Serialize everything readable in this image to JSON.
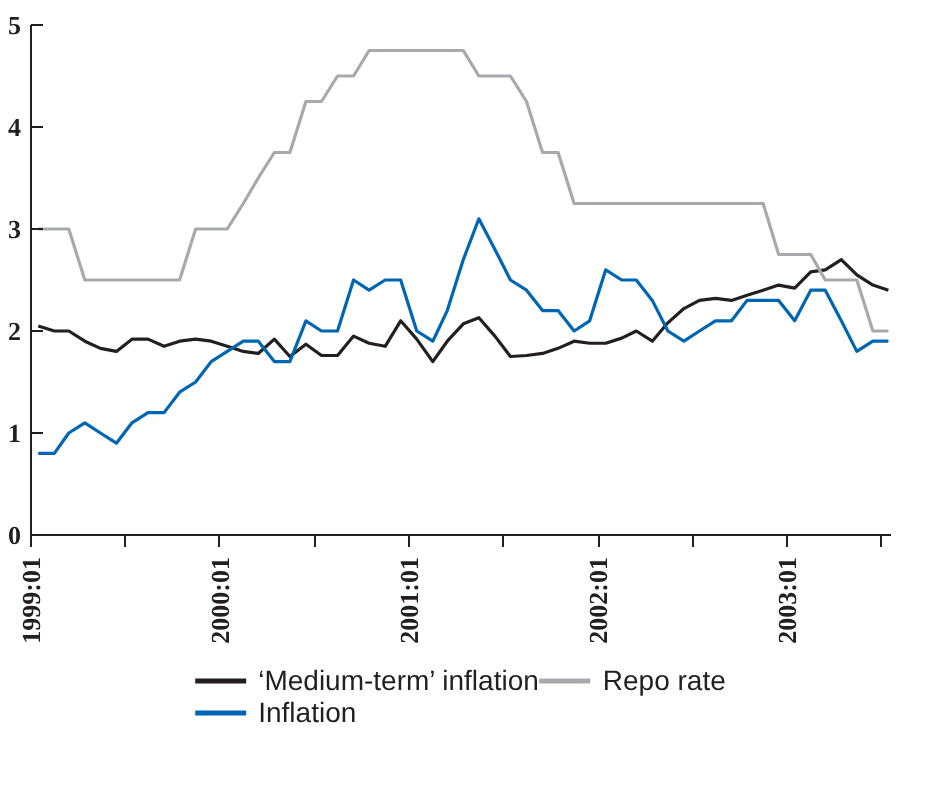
{
  "chart_data": {
    "type": "line",
    "x": [
      "1999-01-15",
      "1999-02-15",
      "1999-03-15",
      "1999-04-15",
      "1999-05-15",
      "1999-06-15",
      "1999-07-15",
      "1999-08-15",
      "1999-09-15",
      "1999-10-15",
      "1999-11-15",
      "1999-12-15",
      "2000-01-15",
      "2000-02-15",
      "2000-03-15",
      "2000-04-15",
      "2000-05-15",
      "2000-06-15",
      "2000-07-15",
      "2000-08-15",
      "2000-09-15",
      "2000-10-15",
      "2000-11-15",
      "2000-12-15",
      "2001-01-15",
      "2001-02-15",
      "2001-03-15",
      "2001-04-15",
      "2001-05-15",
      "2001-06-15",
      "2001-07-15",
      "2001-08-15",
      "2001-09-15",
      "2001-10-15",
      "2001-11-15",
      "2001-12-15",
      "2002-01-15",
      "2002-02-15",
      "2002-03-15",
      "2002-04-15",
      "2002-05-15",
      "2002-06-15",
      "2002-07-15",
      "2002-08-15",
      "2002-09-15",
      "2002-10-15",
      "2002-11-15",
      "2002-12-15",
      "2003-01-15",
      "2003-02-15",
      "2003-03-15",
      "2003-04-15",
      "2003-05-15",
      "2003-06-15",
      "2003-07-15"
    ],
    "series": [
      {
        "name": "‘Medium-term’ inflation",
        "color": "#231f20",
        "values": [
          2.05,
          2.0,
          2.0,
          1.9,
          1.83,
          1.8,
          1.92,
          1.92,
          1.85,
          1.9,
          1.92,
          1.9,
          1.85,
          1.8,
          1.78,
          1.92,
          1.75,
          1.87,
          1.76,
          1.76,
          1.95,
          1.88,
          1.85,
          2.1,
          1.92,
          1.7,
          1.9,
          2.07,
          2.13,
          1.95,
          1.75,
          1.76,
          1.78,
          1.83,
          1.9,
          1.88,
          1.88,
          1.93,
          2.0,
          1.9,
          2.08,
          2.22,
          2.3,
          2.32,
          2.3,
          2.35,
          2.4,
          2.45,
          2.42,
          2.58,
          2.6,
          2.7,
          2.55,
          2.45,
          2.4
        ]
      },
      {
        "name": "Inflation",
        "color": "#0066b3",
        "values": [
          0.8,
          0.8,
          1.0,
          1.1,
          1.0,
          0.9,
          1.1,
          1.2,
          1.2,
          1.4,
          1.5,
          1.7,
          1.8,
          1.9,
          1.9,
          1.7,
          1.7,
          2.1,
          2.0,
          2.0,
          2.5,
          2.4,
          2.5,
          2.5,
          2.0,
          1.9,
          2.2,
          2.7,
          3.1,
          2.8,
          2.5,
          2.4,
          2.2,
          2.2,
          2.0,
          2.1,
          2.6,
          2.5,
          2.5,
          2.3,
          2.0,
          1.9,
          2.0,
          2.1,
          2.1,
          2.3,
          2.3,
          2.3,
          2.1,
          2.4,
          2.4,
          2.1,
          1.8,
          1.9,
          1.9
        ]
      },
      {
        "name": "Repo rate",
        "color": "#a7a9ac",
        "values": [
          3.0,
          3.0,
          3.0,
          2.5,
          2.5,
          2.5,
          2.5,
          2.5,
          2.5,
          2.5,
          3.0,
          3.0,
          3.0,
          3.25,
          3.5,
          3.75,
          3.75,
          4.25,
          4.25,
          4.5,
          4.5,
          4.75,
          4.75,
          4.75,
          4.75,
          4.75,
          4.75,
          4.75,
          4.5,
          4.5,
          4.5,
          4.25,
          3.75,
          3.75,
          3.25,
          3.25,
          3.25,
          3.25,
          3.25,
          3.25,
          3.25,
          3.25,
          3.25,
          3.25,
          3.25,
          3.25,
          3.25,
          2.75,
          2.75,
          2.75,
          2.5,
          2.5,
          2.5,
          2.0,
          2.0
        ]
      }
    ],
    "xlim": [
      "1999-01",
      "2003-07-20"
    ],
    "xticks": [
      {
        "value": "1999-01",
        "label": "1999:01"
      },
      {
        "value": "1999-07",
        "label": null
      },
      {
        "value": "2000-01",
        "label": "2000:01"
      },
      {
        "value": "2000-07",
        "label": null
      },
      {
        "value": "2001-01",
        "label": "2001:01"
      },
      {
        "value": "2001-07",
        "label": null
      },
      {
        "value": "2002-01",
        "label": "2002:01"
      },
      {
        "value": "2002-07",
        "label": null
      },
      {
        "value": "2003-01",
        "label": "2003:01"
      },
      {
        "value": "2003-07",
        "label": null
      }
    ],
    "ylim": [
      0,
      5
    ],
    "yticks": [
      0,
      1,
      2,
      3,
      4,
      5
    ],
    "grid": false,
    "legend": "bottom",
    "marker": "none",
    "line_style": "solid"
  }
}
